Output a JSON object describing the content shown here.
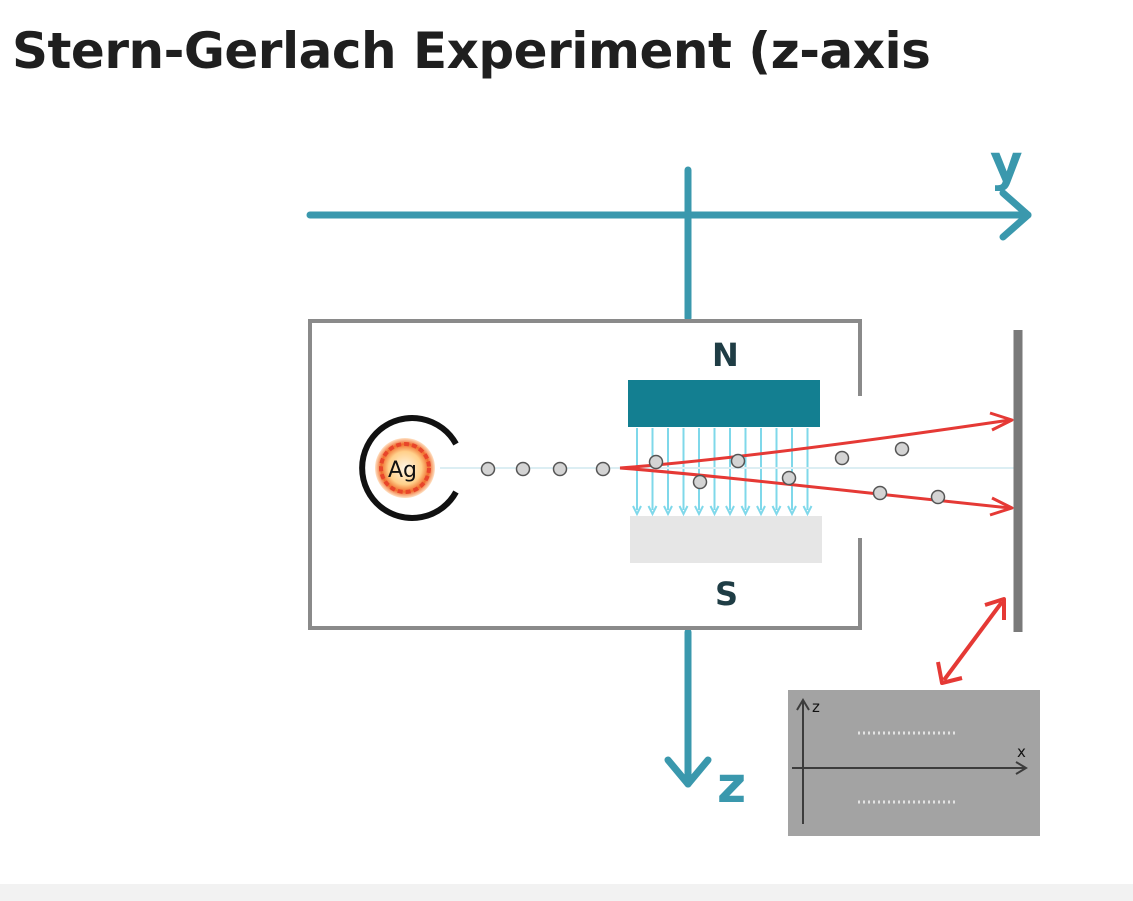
{
  "title": "Stern-Gerlach Experiment (z-axis",
  "axes": {
    "y_label": "y",
    "z_label": "z"
  },
  "magnet": {
    "north_label": "N",
    "south_label": "S"
  },
  "source": {
    "label": "Ag"
  },
  "inset": {
    "z_label": "z",
    "x_label": "x"
  },
  "colors": {
    "axis": "#3a98ad",
    "north_pole": "#137f91",
    "south_pole": "#e6e6e6",
    "field_lines": "#7fd8ea",
    "beam": "#e53935",
    "apparatus": "#8a8a8a",
    "screen_inset_bg": "#a3a3a3"
  }
}
